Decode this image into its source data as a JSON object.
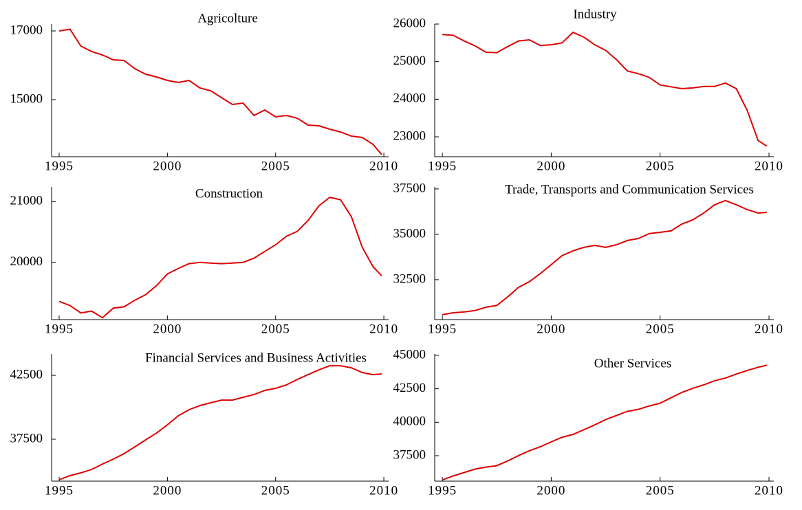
{
  "chart_data": [
    {
      "type": "line",
      "title": "Agricolture",
      "color": "#e00000",
      "x": [
        1995,
        1995.5,
        1996,
        1996.5,
        1997,
        1997.5,
        1998,
        1998.5,
        1999,
        1999.5,
        2000,
        2000.5,
        2001,
        2001.5,
        2002,
        2002.5,
        2003,
        2003.5,
        2004,
        2004.5,
        2005,
        2005.5,
        2006,
        2006.5,
        2007,
        2007.5,
        2008,
        2008.5,
        2009,
        2009.5,
        2009.9
      ],
      "values": [
        17000,
        17050,
        16560,
        16400,
        16300,
        16160,
        16140,
        15900,
        15740,
        15660,
        15560,
        15500,
        15560,
        15340,
        15260,
        15060,
        14860,
        14900,
        14540,
        14700,
        14500,
        14540,
        14460,
        14260,
        14240,
        14140,
        14060,
        13940,
        13900,
        13700,
        13400
      ],
      "xlim": [
        1994.65,
        2010.22
      ],
      "xticks": [
        1995,
        2000,
        2005,
        2010
      ],
      "ylim": [
        13340,
        17200
      ],
      "yticks": [
        17000,
        15000
      ]
    },
    {
      "type": "line",
      "title": "Industry",
      "color": "#e00000",
      "x": [
        1995,
        1995.5,
        1996,
        1996.5,
        1997,
        1997.5,
        1998,
        1998.5,
        1999,
        1999.5,
        2000,
        2000.5,
        2001,
        2001.5,
        2002,
        2002.5,
        2003,
        2003.5,
        2004,
        2004.5,
        2005,
        2005.5,
        2006,
        2006.5,
        2007,
        2007.5,
        2008,
        2008.5,
        2009,
        2009.5,
        2009.9
      ],
      "values": [
        25720,
        25700,
        25550,
        25420,
        25250,
        25240,
        25400,
        25550,
        25580,
        25430,
        25450,
        25500,
        25780,
        25650,
        25450,
        25300,
        25050,
        24750,
        24680,
        24580,
        24380,
        24330,
        24280,
        24300,
        24340,
        24340,
        24430,
        24280,
        23700,
        22900,
        22750
      ],
      "xlim": [
        1994.65,
        2010.22
      ],
      "xticks": [
        1995,
        2000,
        2005,
        2010
      ],
      "ylim": [
        22470,
        26000
      ],
      "yticks": [
        26000,
        25000,
        24000,
        23000
      ]
    },
    {
      "type": "line",
      "title": "Construction",
      "color": "#e00000",
      "x": [
        1995,
        1995.5,
        1996,
        1996.5,
        1997,
        1997.5,
        1998,
        1998.5,
        1999,
        1999.5,
        2000,
        2000.5,
        2001,
        2001.5,
        2002,
        2002.5,
        2003,
        2003.5,
        2004,
        2004.5,
        2005,
        2005.5,
        2006,
        2006.5,
        2007,
        2007.5,
        2008,
        2008.5,
        2009,
        2009.5,
        2009.9
      ],
      "values": [
        19360,
        19290,
        19170,
        19200,
        19090,
        19250,
        19270,
        19380,
        19470,
        19620,
        19810,
        19900,
        19980,
        20000,
        19990,
        19980,
        19990,
        20000,
        20070,
        20180,
        20290,
        20430,
        20510,
        20690,
        20930,
        21070,
        21030,
        20750,
        20250,
        19930,
        19780
      ],
      "xlim": [
        1994.65,
        2010.22
      ],
      "xticks": [
        1995,
        2000,
        2005,
        2010
      ],
      "ylim": [
        19060,
        21240
      ],
      "yticks": [
        21000,
        20000
      ]
    },
    {
      "type": "line",
      "title": "Trade, Transports and Communication Services",
      "color": "#e00000",
      "x": [
        1995,
        1995.5,
        1996,
        1996.5,
        1997,
        1997.5,
        1998,
        1998.5,
        1999,
        1999.5,
        2000,
        2000.5,
        2001,
        2001.5,
        2002,
        2002.5,
        2003,
        2003.5,
        2004,
        2004.5,
        2005,
        2005.5,
        2006,
        2006.5,
        2007,
        2007.5,
        2008,
        2008.5,
        2009,
        2009.5,
        2009.9
      ],
      "values": [
        30570,
        30680,
        30720,
        30800,
        30980,
        31080,
        31550,
        32080,
        32390,
        32840,
        33330,
        33830,
        34090,
        34280,
        34390,
        34280,
        34430,
        34660,
        34770,
        35040,
        35110,
        35190,
        35570,
        35800,
        36170,
        36630,
        36860,
        36630,
        36360,
        36170,
        36210
      ],
      "xlim": [
        1994.65,
        2010.22
      ],
      "xticks": [
        1995,
        2000,
        2005,
        2010
      ],
      "ylim": [
        30300,
        37610
      ],
      "yticks": [
        37500,
        35000,
        32500
      ]
    },
    {
      "type": "line",
      "title": "Financial Services and Business Activities",
      "color": "#e00000",
      "x": [
        1995,
        1995.5,
        1996,
        1996.5,
        1997,
        1997.5,
        1998,
        1998.5,
        1999,
        1999.5,
        2000,
        2000.5,
        2001,
        2001.5,
        2002,
        2002.5,
        2003,
        2003.5,
        2004,
        2004.5,
        2005,
        2005.5,
        2006,
        2006.5,
        2007,
        2007.5,
        2008,
        2008.5,
        2009,
        2009.5,
        2009.9
      ],
      "values": [
        34330,
        34650,
        34870,
        35130,
        35560,
        35940,
        36370,
        36910,
        37450,
        37980,
        38630,
        39330,
        39810,
        40130,
        40350,
        40560,
        40560,
        40780,
        40990,
        41320,
        41480,
        41750,
        42180,
        42550,
        42930,
        43250,
        43250,
        43090,
        42720,
        42550,
        42610
      ],
      "xlim": [
        1994.65,
        2010.22
      ],
      "xticks": [
        1995,
        2000,
        2005,
        2010
      ],
      "ylim": [
        34220,
        44170
      ],
      "yticks": [
        42500,
        37500
      ]
    },
    {
      "type": "line",
      "title": "Other Services",
      "color": "#e00000",
      "x": [
        1995,
        1995.5,
        1996,
        1996.5,
        1997,
        1997.5,
        1998,
        1998.5,
        1999,
        1999.5,
        2000,
        2000.5,
        2001,
        2001.5,
        2002,
        2002.5,
        2003,
        2003.5,
        2004,
        2004.5,
        2005,
        2005.5,
        2006,
        2006.5,
        2007,
        2007.5,
        2008,
        2008.5,
        2009,
        2009.5,
        2009.9
      ],
      "values": [
        35690,
        35990,
        36240,
        36500,
        36650,
        36750,
        37110,
        37510,
        37870,
        38170,
        38530,
        38880,
        39090,
        39440,
        39800,
        40200,
        40510,
        40810,
        40960,
        41220,
        41420,
        41830,
        42230,
        42540,
        42790,
        43100,
        43300,
        43600,
        43860,
        44110,
        44260
      ],
      "xlim": [
        1994.65,
        2010.22
      ],
      "xticks": [
        1995,
        2000,
        2005,
        2010
      ],
      "ylim": [
        35600,
        45100
      ],
      "yticks": [
        45000,
        42500,
        40000,
        37500
      ]
    }
  ]
}
